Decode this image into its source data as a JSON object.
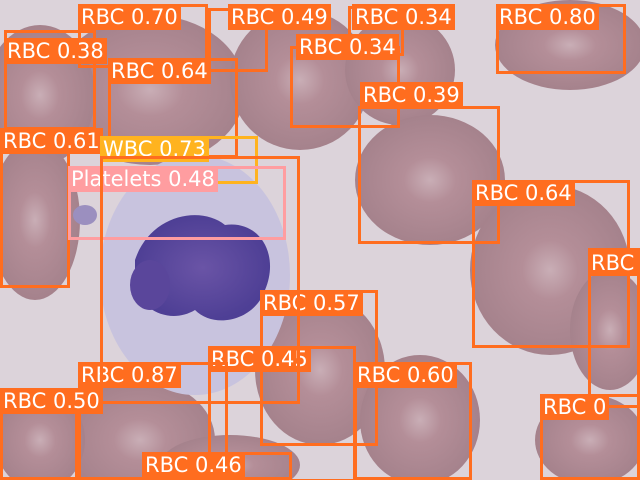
{
  "colors": {
    "RBC": "#ff6d1f",
    "WBC": "#ffb31f",
    "Platelets": "#ff9da0",
    "label_text": "#ffffff"
  },
  "detections": [
    {
      "label": "RBC 0.70"
    },
    {
      "label": "RBC 0.49"
    },
    {
      "label": "RBC 0.34"
    },
    {
      "label": "RBC 0.80"
    },
    {
      "label": "RBC 0.38"
    },
    {
      "label": "RBC 0.34"
    },
    {
      "label": "RBC 0.64"
    },
    {
      "label": "RBC 0.39"
    },
    {
      "label": "RBC 0.61"
    },
    {
      "label": "WBC 0.73"
    },
    {
      "label": "Platelets 0.48"
    },
    {
      "label": "RBC 0.64"
    },
    {
      "label": "RBC"
    },
    {
      "label": "RBC 0.57"
    },
    {
      "label": "RBC 0.45"
    },
    {
      "label": "RBC 0.87"
    },
    {
      "label": "RBC 0.60"
    },
    {
      "label": "RBC 0.50"
    },
    {
      "label": "RBC 0"
    },
    {
      "label": "RBC 0.46"
    },
    {
      "label": "RBC"
    }
  ]
}
